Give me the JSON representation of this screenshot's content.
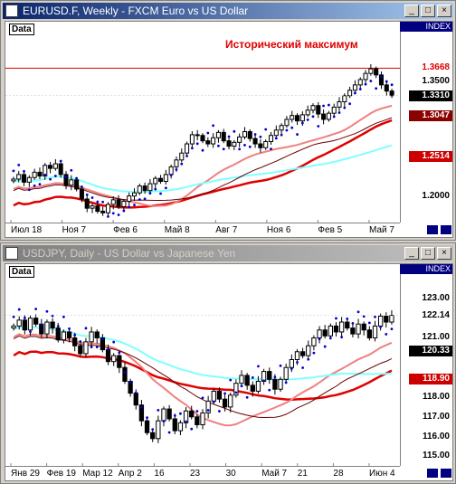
{
  "windows": [
    {
      "title": "EURUSD.F, Weekly - FXCM Euro vs US Dollar",
      "data_label": "Data",
      "index_label": "INDEX",
      "annotation": "Исторический максимум",
      "price_tags": [
        {
          "label": "1.3668",
          "bg": "#ffffff",
          "fg": "#e00000",
          "y": 1.3668
        },
        {
          "label": "1.3500",
          "bg": "#ffffff",
          "fg": "#000000",
          "y": 1.35
        },
        {
          "label": "1.3310",
          "bg": "#000000",
          "fg": "#ffffff",
          "y": 1.331
        },
        {
          "label": "1.3047",
          "bg": "#8b0000",
          "fg": "#ffffff",
          "y": 1.3047
        },
        {
          "label": "1.2514",
          "bg": "#cc0000",
          "fg": "#ffffff",
          "y": 1.2514
        },
        {
          "label": "1.2000",
          "bg": "#ffffff",
          "fg": "#000000",
          "y": 1.2
        }
      ],
      "x_labels": [
        "Июл 18",
        "Ноя 7",
        "Фев 6",
        "Май 8",
        "Авг 7",
        "Ноя 6",
        "Фев 5",
        "Май 7"
      ],
      "colors": {
        "candles": "#000000",
        "psar": "#0000cc",
        "ma_red": "#e00000",
        "ma_pink": "#f08080",
        "ma_cyan": "#80ffff",
        "ma_dark": "#6b0000"
      }
    },
    {
      "title": "USDJPY, Daily - US Dollar vs Japanese Yen",
      "data_label": "Data",
      "index_label": "INDEX",
      "price_tags": [
        {
          "label": "123.00",
          "bg": "#ffffff",
          "fg": "#000000",
          "y": 123.0
        },
        {
          "label": "122.14",
          "bg": "#ffffff",
          "fg": "#000000",
          "y": 122.14
        },
        {
          "label": "121.00",
          "bg": "#ffffff",
          "fg": "#000000",
          "y": 121.0
        },
        {
          "label": "120.33",
          "bg": "#000000",
          "fg": "#ffffff",
          "y": 120.33
        },
        {
          "label": "118.90",
          "bg": "#cc0000",
          "fg": "#ffffff",
          "y": 118.9
        },
        {
          "label": "118.00",
          "bg": "#ffffff",
          "fg": "#000000",
          "y": 118.0
        },
        {
          "label": "117.00",
          "bg": "#ffffff",
          "fg": "#000000",
          "y": 117.0
        },
        {
          "label": "116.00",
          "bg": "#ffffff",
          "fg": "#000000",
          "y": 116.0
        },
        {
          "label": "115.00",
          "bg": "#ffffff",
          "fg": "#000000",
          "y": 115.0
        }
      ],
      "x_labels": [
        "Янв 29",
        "Фев 19",
        "Мар 12",
        "Апр 2",
        "16",
        "23",
        "30",
        "Май 7",
        "21",
        "28",
        "Июн 4"
      ],
      "colors": {
        "candles": "#000000",
        "psar": "#0000cc",
        "ma_red": "#e00000",
        "ma_pink": "#f08080",
        "ma_cyan": "#80ffff",
        "ma_dark": "#6b0000"
      }
    }
  ],
  "chart_data": [
    {
      "type": "candlestick",
      "symbol": "EURUSD.F",
      "timeframe": "Weekly",
      "ylim": [
        1.17,
        1.385
      ],
      "annotation": "Исторический максимум",
      "historical_high": 1.3668,
      "last_price": 1.331,
      "ma_levels": [
        1.3047,
        1.2514
      ],
      "x_labels": [
        "Июл 18",
        "Ноя 7",
        "Фев 6",
        "Май 8",
        "Авг 7",
        "Ноя 6",
        "Фев 5",
        "Май 7"
      ],
      "close_series": [
        1.222,
        1.228,
        1.218,
        1.224,
        1.231,
        1.226,
        1.24,
        1.236,
        1.242,
        1.228,
        1.214,
        1.221,
        1.209,
        1.196,
        1.184,
        1.187,
        1.18,
        1.178,
        1.189,
        1.195,
        1.186,
        1.193,
        1.2,
        1.204,
        1.213,
        1.207,
        1.216,
        1.223,
        1.219,
        1.228,
        1.238,
        1.247,
        1.256,
        1.268,
        1.28,
        1.279,
        1.272,
        1.268,
        1.276,
        1.283,
        1.272,
        1.265,
        1.27,
        1.277,
        1.284,
        1.275,
        1.268,
        1.263,
        1.271,
        1.279,
        1.286,
        1.292,
        1.3,
        1.305,
        1.298,
        1.306,
        1.312,
        1.318,
        1.307,
        1.3,
        1.308,
        1.316,
        1.323,
        1.331,
        1.338,
        1.345,
        1.352,
        1.36,
        1.366,
        1.358,
        1.345,
        1.337,
        1.331
      ]
    },
    {
      "type": "candlestick",
      "symbol": "USDJPY",
      "timeframe": "Daily",
      "ylim": [
        114.7,
        124.0
      ],
      "last_price": 122.14,
      "ma_levels": [
        120.33,
        118.9
      ],
      "x_labels": [
        "Янв 29",
        "Фев 19",
        "Мар 12",
        "Апр 2",
        "16",
        "23",
        "30",
        "Май 7",
        "21",
        "28",
        "Июн 4"
      ],
      "close_series": [
        121.6,
        121.9,
        121.4,
        122.0,
        121.7,
        121.2,
        121.8,
        121.5,
        120.9,
        121.3,
        121.0,
        120.6,
        120.2,
        120.8,
        121.3,
        121.0,
        120.4,
        119.8,
        120.1,
        119.5,
        118.8,
        118.2,
        117.6,
        116.8,
        116.2,
        115.9,
        116.8,
        117.4,
        116.9,
        116.3,
        116.7,
        117.3,
        117.0,
        116.6,
        117.2,
        117.8,
        118.3,
        117.9,
        117.5,
        118.1,
        118.7,
        119.1,
        118.6,
        118.3,
        118.8,
        119.3,
        118.9,
        118.4,
        118.9,
        119.5,
        119.9,
        120.3,
        120.1,
        120.6,
        121.0,
        121.4,
        121.1,
        121.6,
        121.3,
        121.8,
        121.5,
        121.2,
        121.7,
        121.4,
        121.0,
        121.6,
        122.1,
        121.8,
        122.14
      ]
    }
  ]
}
